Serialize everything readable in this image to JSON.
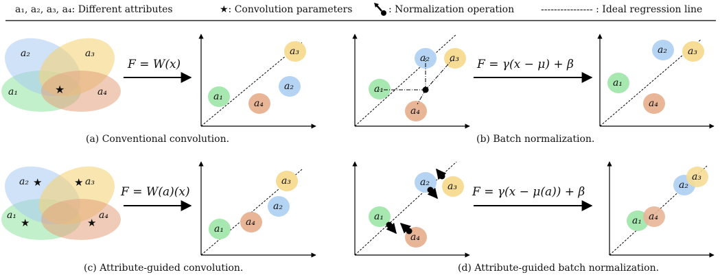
{
  "legend": {
    "attributes_text": "a₁, a₂, a₃, a₄: Different attributes",
    "conv_params_text": "★: Convolution parameters",
    "norm_op_text": ": Normalization operation",
    "ideal_line_text": "---------------- : Ideal regression line"
  },
  "captions": {
    "a": "(a) Conventional convolution.",
    "b": "(b) Batch normalization.",
    "c": "(c) Attribute-guided convolution.",
    "d": "(d) Attribute-guided batch normalization."
  },
  "formulas": {
    "a": "F = W(x)",
    "b": "F = γ(x − μ) + β",
    "c": "F = W(a)(x)",
    "d": "F = γ(x − μ(a)) + β"
  },
  "attribute_labels": {
    "a1": "a₁",
    "a2": "a₂",
    "a3": "a₃",
    "a4": "a₄"
  },
  "star_glyph": "★",
  "colors": {
    "a1": "#a7e8b0",
    "a2": "#b5d3f3",
    "a3": "#f6dc95",
    "a4": "#e8b597"
  }
}
